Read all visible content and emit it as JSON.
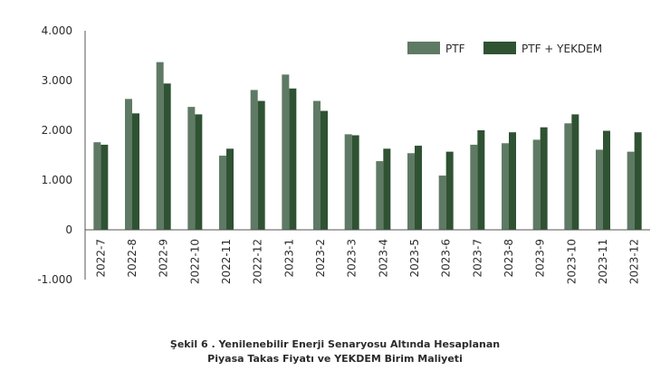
{
  "chart_data": {
    "type": "bar",
    "categories": [
      "2022-7",
      "2022-8",
      "2022-9",
      "2022-10",
      "2022-11",
      "2022-12",
      "2023-1",
      "2023-2",
      "2023-3",
      "2023-4",
      "2023-5",
      "2023-6",
      "2023-7",
      "2023-8",
      "2023-9",
      "2023-10",
      "2023-11",
      "2023-12"
    ],
    "series": [
      {
        "name": "PTF",
        "color": "#5f7a64",
        "values": [
          1760,
          2630,
          3370,
          2470,
          1490,
          2810,
          3120,
          2590,
          1920,
          1380,
          1540,
          1090,
          1710,
          1740,
          1810,
          2140,
          1610,
          1570
        ]
      },
      {
        "name": "PTF + YEKDEM",
        "color": "#2f5233",
        "values": [
          1710,
          2340,
          2940,
          2320,
          1630,
          2590,
          2840,
          2390,
          1900,
          1630,
          1690,
          1570,
          2000,
          1960,
          2060,
          2320,
          1990,
          1960
        ]
      }
    ],
    "ylim": [
      -1000,
      4000
    ],
    "yticks": [
      4000,
      3000,
      2000,
      1000,
      0,
      -1000
    ],
    "ytick_labels": [
      "4.000",
      "3.000",
      "2.000",
      "1.000",
      "0",
      "-1.000"
    ],
    "grid": false,
    "legend_position": "top-right"
  },
  "caption": {
    "line1": "Şekil 6 . Yenilenebilir Enerji Senaryosu Altında Hesaplanan",
    "line2": "Piyasa Takas Fiyatı ve YEKDEM Birim Maliyeti"
  }
}
